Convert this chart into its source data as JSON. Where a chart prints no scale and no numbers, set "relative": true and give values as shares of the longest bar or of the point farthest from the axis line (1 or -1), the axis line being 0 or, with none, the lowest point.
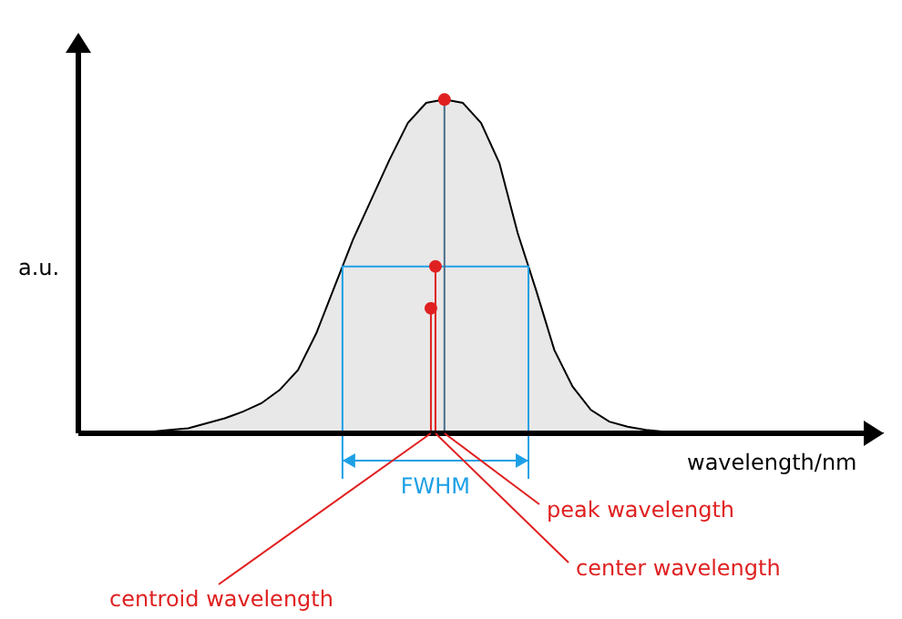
{
  "chart_data": {
    "type": "area",
    "xlabel": "wavelength/nm",
    "ylabel": "a.u.",
    "relative": true,
    "marker": "none",
    "categories": [
      null,
      null,
      null,
      null,
      null,
      null,
      null,
      null,
      null,
      null,
      null,
      null,
      null,
      null,
      null,
      null,
      null,
      null,
      null,
      null,
      null,
      null,
      null,
      null,
      null,
      null,
      null,
      null,
      null,
      null,
      null,
      null,
      null,
      null,
      null,
      null,
      null,
      null,
      null,
      null,
      null,
      null,
      null,
      null,
      null
    ],
    "series": [
      {
        "color": "#000000",
        "values": [
          0,
          0,
          0,
          0,
          0.005,
          0.01,
          0.015,
          0.03,
          0.045,
          0.065,
          0.09,
          0.13,
          0.19,
          0.3,
          0.44,
          0.58,
          0.7,
          0.82,
          0.93,
          0.99,
          1,
          0.99,
          0.93,
          0.81,
          0.6,
          0.43,
          0.25,
          0.14,
          0.07,
          0.035,
          0.02,
          0.01,
          0.005,
          0,
          0,
          0,
          0,
          0,
          0,
          0,
          0,
          0,
          0,
          0,
          0
        ]
      }
    ],
    "ref_lines": [
      {
        "axis": "y",
        "value": 0.5,
        "color": "#1ea0e6"
      }
    ],
    "annotations": [
      "FWHM",
      "peak wavelength",
      "center wavelength",
      "centroid wavelength"
    ]
  }
}
